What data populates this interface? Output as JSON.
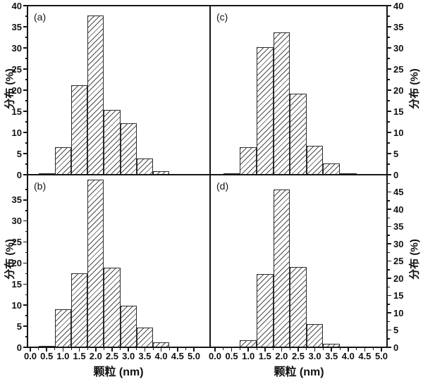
{
  "figure": {
    "background": "#ffffff",
    "line_color": "#161616",
    "hatch_color": "#2b2b2b",
    "hatch_style": "diagonal-forward-slash"
  },
  "chart_data": {
    "type": "bar",
    "title": "",
    "xlabel": "颗粒 (nm)",
    "ylabel": "分布 (%)",
    "x_tick_labels": [
      "0.0",
      "0.5",
      "1.0",
      "1.5",
      "2.0",
      "2.5",
      "3.0",
      "3.5",
      "4.0",
      "4.5",
      "5.0"
    ],
    "x_minor_tick_step": 0.25,
    "bin_width": 0.5,
    "grid": "off",
    "legend": "none",
    "panels": [
      {
        "id": "a",
        "label": "(a)",
        "ylabel_side": "left",
        "ylim": [
          0,
          40
        ],
        "yticks": [
          "0",
          "5",
          "10",
          "15",
          "20",
          "25",
          "30",
          "35",
          "40"
        ],
        "centers": [
          0.5,
          1.0,
          1.5,
          2.0,
          2.5,
          3.0,
          3.5,
          4.0
        ],
        "values": [
          0.3,
          6.5,
          21.2,
          37.7,
          15.4,
          12.1,
          3.9,
          0.8
        ]
      },
      {
        "id": "b",
        "label": "(b)",
        "ylabel_side": "left",
        "ylim": [
          0,
          41
        ],
        "yticks": [
          "0",
          "5",
          "10",
          "15",
          "20",
          "25",
          "30",
          "35"
        ],
        "centers": [
          0.5,
          1.0,
          1.5,
          2.0,
          2.5,
          3.0,
          3.5,
          4.0
        ],
        "values": [
          0.2,
          9.0,
          17.6,
          39.8,
          18.9,
          9.8,
          4.7,
          1.2
        ]
      },
      {
        "id": "c",
        "label": "(c)",
        "ylabel_side": "right",
        "ylim": [
          0,
          40
        ],
        "yticks": [
          "0",
          "5",
          "10",
          "15",
          "20",
          "25",
          "30",
          "35",
          "40"
        ],
        "centers": [
          0.5,
          1.0,
          1.5,
          2.0,
          2.5,
          3.0,
          3.5,
          4.0
        ],
        "values": [
          0.3,
          6.5,
          30.1,
          33.6,
          19.2,
          6.9,
          2.7,
          0.3
        ]
      },
      {
        "id": "d",
        "label": "(d)",
        "ylabel_side": "right",
        "ylim": [
          0,
          50
        ],
        "yticks": [
          "0",
          "5",
          "10",
          "15",
          "20",
          "25",
          "30",
          "35",
          "40",
          "45"
        ],
        "centers": [
          1.0,
          1.5,
          2.0,
          2.5,
          3.0,
          3.5
        ],
        "values": [
          2.0,
          21.3,
          45.7,
          23.2,
          6.8,
          1.0
        ]
      }
    ]
  }
}
